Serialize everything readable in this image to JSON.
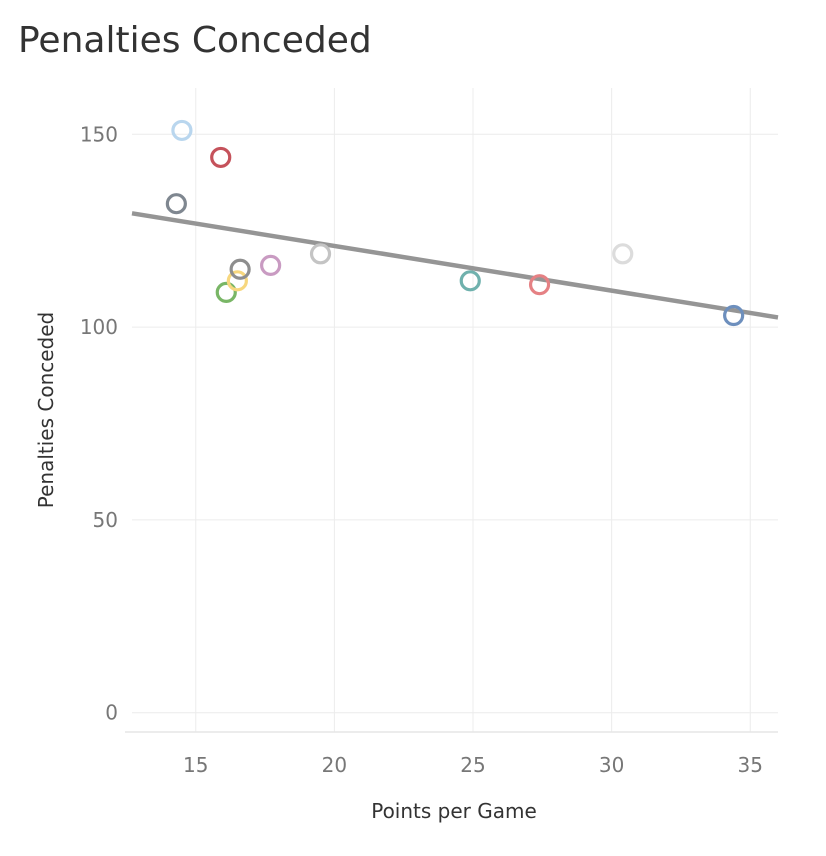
{
  "title": "Penalties Conceded",
  "chart_data": {
    "type": "scatter",
    "title": "Penalties Conceded",
    "xlabel": "Points per Game",
    "ylabel": "Penalties Conceded",
    "xlim": [
      12.7,
      36.0
    ],
    "ylim": [
      -5,
      162
    ],
    "x_ticks": [
      "15",
      "20",
      "25",
      "30",
      "35"
    ],
    "y_ticks": [
      "0",
      "50",
      "100",
      "150"
    ],
    "grid": true,
    "points": [
      {
        "x": 14.3,
        "y": 132,
        "color": "#7f8790"
      },
      {
        "x": 14.5,
        "y": 151,
        "color": "#b9d6ee"
      },
      {
        "x": 15.9,
        "y": 144,
        "color": "#c5525b"
      },
      {
        "x": 16.1,
        "y": 109,
        "color": "#79b666"
      },
      {
        "x": 16.5,
        "y": 112,
        "color": "#f7d77e"
      },
      {
        "x": 16.6,
        "y": 115,
        "color": "#8e8e8e"
      },
      {
        "x": 17.7,
        "y": 116,
        "color": "#c99bc2"
      },
      {
        "x": 19.5,
        "y": 119,
        "color": "#c4c4c4"
      },
      {
        "x": 24.9,
        "y": 112,
        "color": "#6fb1ad"
      },
      {
        "x": 27.4,
        "y": 111,
        "color": "#e58184"
      },
      {
        "x": 30.4,
        "y": 119,
        "color": "#dcdcdc"
      },
      {
        "x": 34.4,
        "y": 103,
        "color": "#6d8fbd"
      }
    ],
    "trend_line": {
      "x": [
        12.7,
        36.0
      ],
      "y": [
        129.5,
        102.5
      ],
      "color": "#959595"
    }
  }
}
